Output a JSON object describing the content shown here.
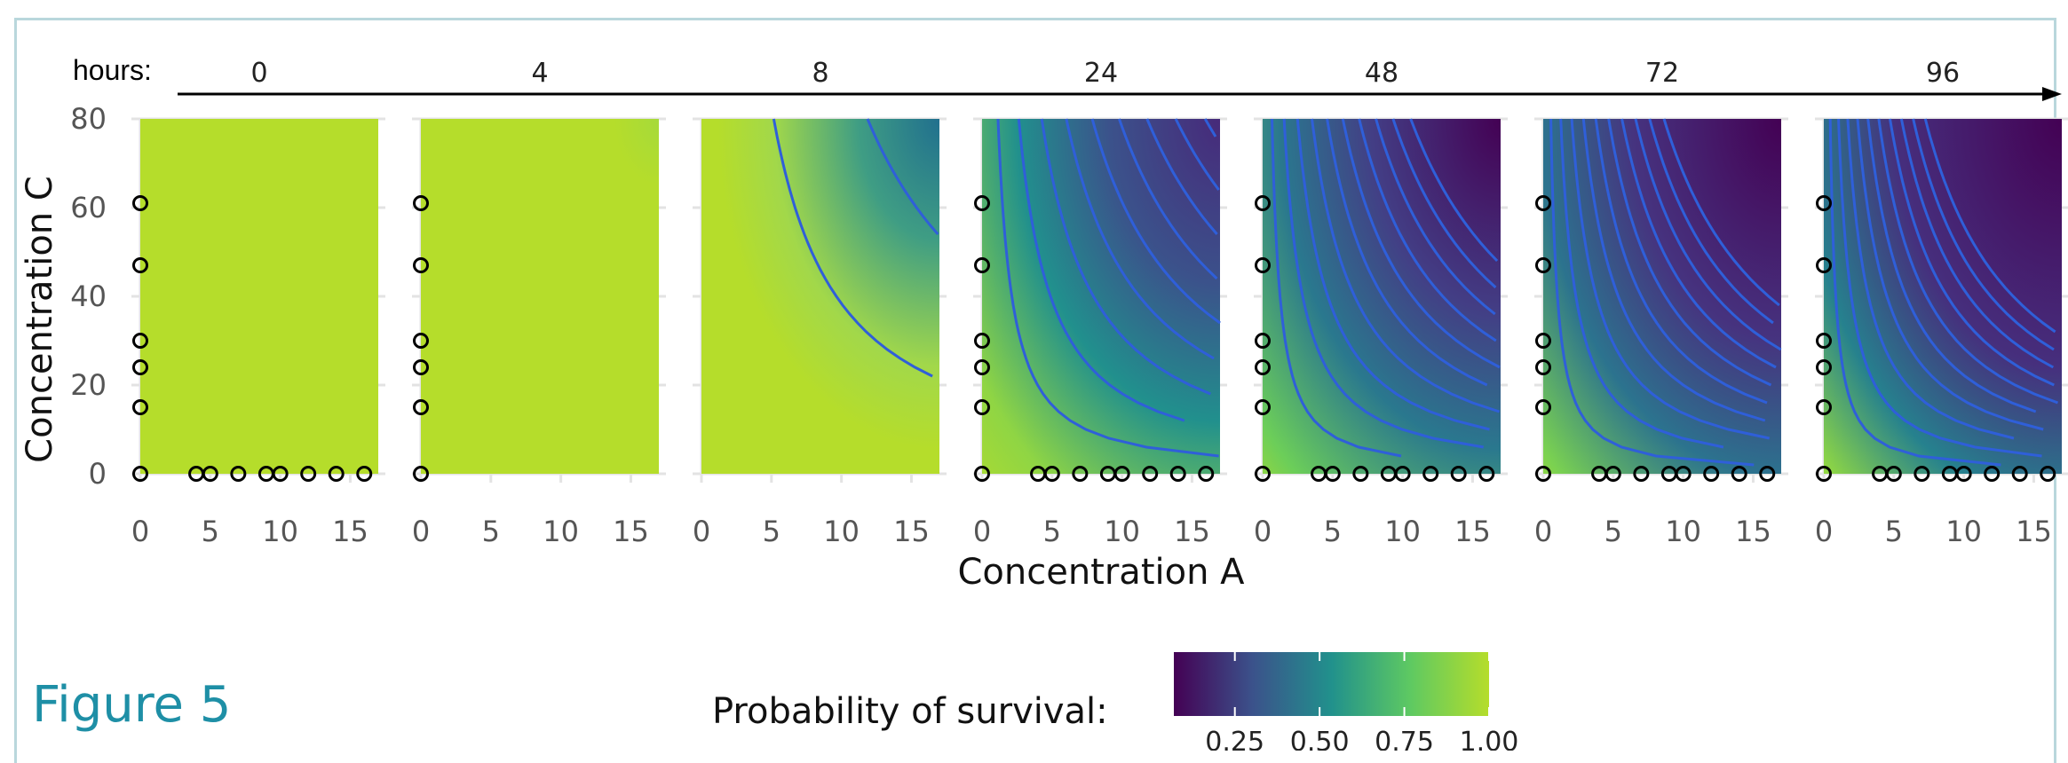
{
  "figure_label": "Figure 5",
  "colors": {
    "survival_high": "#b5dd2b",
    "survival_low": "#440154",
    "contour": "#2f5fd9",
    "figure_label": "#1e8fa6",
    "frame": "#b9d7dc"
  },
  "chart_data": {
    "type": "heatmap",
    "time_axis_label": "hours:",
    "xlabel": "Concentration A",
    "ylabel": "Concentration C",
    "xlim": [
      0,
      17
    ],
    "ylim": [
      0,
      80
    ],
    "x_ticks": [
      0,
      5,
      10,
      15
    ],
    "y_ticks": [
      0,
      20,
      40,
      60,
      80
    ],
    "colorbar": {
      "title": "Probability of survival:",
      "ticks": [
        "0.25",
        "0.50",
        "0.75",
        "1.00"
      ],
      "colormap": "viridis"
    },
    "panels": [
      {
        "hours": "0",
        "severity": 0.0
      },
      {
        "hours": "4",
        "severity": 0.06
      },
      {
        "hours": "8",
        "severity": 0.45
      },
      {
        "hours": "24",
        "severity": 0.95
      },
      {
        "hours": "48",
        "severity": 1.35
      },
      {
        "hours": "72",
        "severity": 1.6
      },
      {
        "hours": "96",
        "severity": 1.85
      }
    ],
    "observation_points": {
      "panel_0": [
        [
          0,
          0
        ],
        [
          0,
          15
        ],
        [
          0,
          24
        ],
        [
          0,
          30
        ],
        [
          0,
          47
        ],
        [
          0,
          61
        ],
        [
          4,
          0
        ],
        [
          5,
          0
        ],
        [
          7,
          0
        ],
        [
          9,
          0
        ],
        [
          10,
          0
        ],
        [
          12,
          0
        ],
        [
          14,
          0
        ],
        [
          16,
          0
        ]
      ],
      "panel_1": [
        [
          0,
          0
        ],
        [
          0,
          15
        ],
        [
          0,
          24
        ],
        [
          0,
          30
        ],
        [
          0,
          47
        ],
        [
          0,
          61
        ]
      ],
      "panel_2": [],
      "panel_3_to_6": [
        [
          0,
          0
        ],
        [
          0,
          15
        ],
        [
          0,
          24
        ],
        [
          0,
          30
        ],
        [
          0,
          47
        ],
        [
          0,
          61
        ],
        [
          4,
          0
        ],
        [
          5,
          0
        ],
        [
          7,
          0
        ],
        [
          9,
          0
        ],
        [
          10,
          0
        ],
        [
          12,
          0
        ],
        [
          14,
          0
        ],
        [
          16,
          0
        ]
      ]
    }
  }
}
